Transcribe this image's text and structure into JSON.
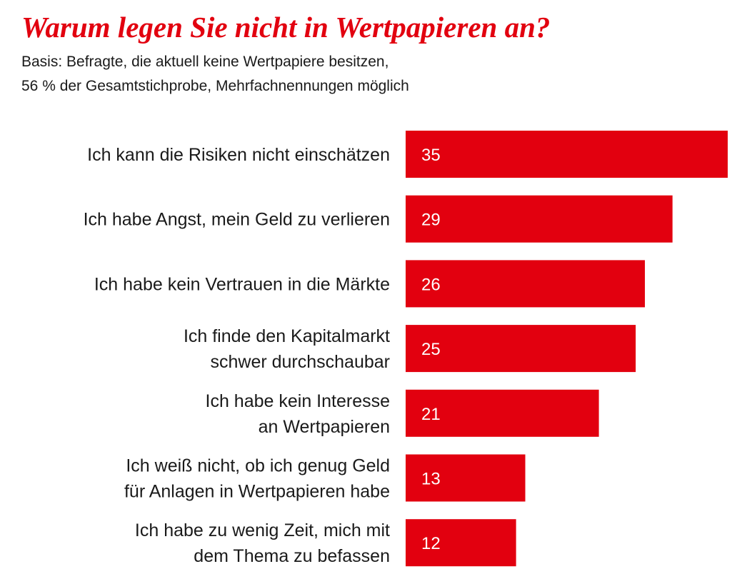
{
  "colors": {
    "accent": "#e2000f",
    "text": "#1a1a1a",
    "bar_label": "#ffffff"
  },
  "header": {
    "title": "Warum legen Sie nicht in Wertpapieren an?",
    "subtitle_lines": [
      "Basis: Befragte, die aktuell keine Wertpapiere besitzen,",
      "56 % der Gesamtstichprobe, Mehrfachnennungen möglich"
    ]
  },
  "chart_data": {
    "type": "bar",
    "orientation": "horizontal",
    "title": "Warum legen Sie nicht in Wertpapieren an?",
    "subtitle": "Basis: Befragte, die aktuell keine Wertpapiere besitzen, 56 % der Gesamtstichprobe, Mehrfachnennungen möglich",
    "xlabel": "",
    "ylabel": "",
    "unit": "%",
    "xlim": [
      0,
      35
    ],
    "grid": false,
    "legend": "none",
    "categories": [
      [
        "Ich kann die Risiken nicht einschätzen"
      ],
      [
        "Ich habe Angst, mein Geld zu verlieren"
      ],
      [
        "Ich habe kein Vertrauen in die Märkte"
      ],
      [
        "Ich finde den Kapitalmarkt",
        "schwer durchschaubar"
      ],
      [
        "Ich habe kein Interesse",
        "an Wertpapieren"
      ],
      [
        "Ich weiß nicht, ob ich genug Geld",
        "für Anlagen in Wertpapieren habe"
      ],
      [
        "Ich habe zu wenig Zeit, mich mit",
        "dem Thema zu befassen"
      ]
    ],
    "values": [
      35,
      29,
      26,
      25,
      21,
      13,
      12
    ]
  }
}
